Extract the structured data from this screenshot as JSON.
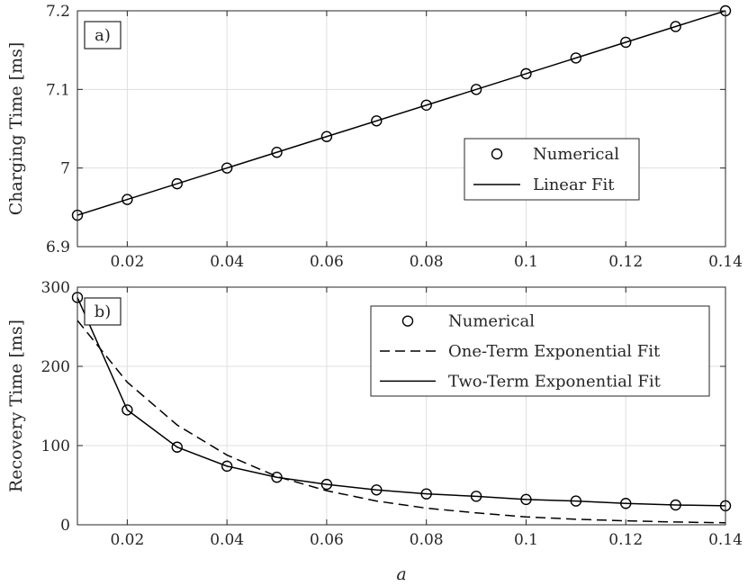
{
  "chart_data": [
    {
      "type": "line",
      "panel_label": "a)",
      "xlabel": "",
      "ylabel": "Charging Time [ms]",
      "xlim": [
        0.01,
        0.14
      ],
      "ylim": [
        6.9,
        7.2
      ],
      "xticks": [
        0.02,
        0.04,
        0.06,
        0.08,
        0.1,
        0.12,
        0.14
      ],
      "xtick_labels": [
        "0.02",
        "0.04",
        "0.06",
        "0.08",
        "0.1",
        "0.12",
        "0.14"
      ],
      "yticks": [
        6.9,
        7.0,
        7.1,
        7.2
      ],
      "ytick_labels": [
        "6.9",
        "7",
        "7.1",
        "7.2"
      ],
      "grid": true,
      "legend_position": "right",
      "series": [
        {
          "name": "Numerical",
          "style": "markers",
          "x": [
            0.01,
            0.02,
            0.03,
            0.04,
            0.05,
            0.06,
            0.07,
            0.08,
            0.09,
            0.1,
            0.11,
            0.12,
            0.13,
            0.14
          ],
          "y": [
            6.94,
            6.96,
            6.98,
            7.0,
            7.02,
            7.04,
            7.06,
            7.08,
            7.1,
            7.12,
            7.14,
            7.16,
            7.18,
            7.2
          ]
        },
        {
          "name": "Linear Fit",
          "style": "solid",
          "x": [
            0.01,
            0.14
          ],
          "y": [
            6.94,
            7.2
          ]
        }
      ]
    },
    {
      "type": "line",
      "panel_label": "b)",
      "xlabel": "a",
      "ylabel": "Recovery Time [ms]",
      "xlim": [
        0.01,
        0.14
      ],
      "ylim": [
        0,
        300
      ],
      "xticks": [
        0.02,
        0.04,
        0.06,
        0.08,
        0.1,
        0.12,
        0.14
      ],
      "xtick_labels": [
        "0.02",
        "0.04",
        "0.06",
        "0.08",
        "0.1",
        "0.12",
        "0.14"
      ],
      "yticks": [
        0,
        100,
        200,
        300
      ],
      "ytick_labels": [
        "0",
        "100",
        "200",
        "300"
      ],
      "grid": true,
      "legend_position": "top-right",
      "series": [
        {
          "name": "Numerical",
          "style": "markers",
          "x": [
            0.01,
            0.02,
            0.03,
            0.04,
            0.05,
            0.06,
            0.07,
            0.08,
            0.09,
            0.1,
            0.11,
            0.12,
            0.13,
            0.14
          ],
          "y": [
            287,
            145,
            98,
            74,
            60,
            51,
            44,
            39,
            36,
            32,
            30,
            27,
            25,
            24
          ]
        },
        {
          "name": "One-Term Exponential Fit",
          "style": "dashed",
          "x": [
            0.01,
            0.02,
            0.03,
            0.04,
            0.05,
            0.06,
            0.07,
            0.08,
            0.09,
            0.1,
            0.11,
            0.12,
            0.13,
            0.14
          ],
          "y": [
            258,
            180,
            126,
            88,
            61,
            43,
            30,
            21,
            15,
            10,
            7,
            5,
            3.5,
            2.5
          ]
        },
        {
          "name": "Two-Term Exponential Fit",
          "style": "solid",
          "x": [
            0.01,
            0.02,
            0.03,
            0.04,
            0.05,
            0.06,
            0.07,
            0.08,
            0.09,
            0.1,
            0.11,
            0.12,
            0.13,
            0.14
          ],
          "y": [
            287,
            145,
            98,
            74,
            60,
            51,
            44,
            39,
            36,
            32,
            30,
            27,
            25,
            24
          ]
        }
      ]
    }
  ]
}
